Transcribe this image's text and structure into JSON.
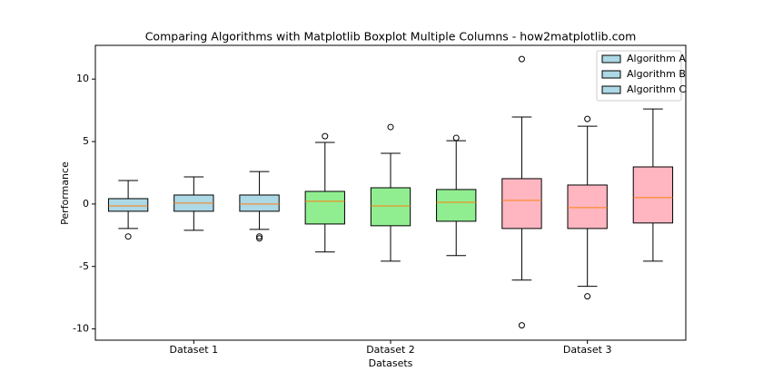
{
  "chart_data": {
    "type": "boxplot",
    "title": "Comparing Algorithms with Matplotlib Boxplot Multiple Columns - how2matplotlib.com",
    "x_label": "Datasets",
    "y_label": "Performance",
    "xlim": [
      0.5,
      9.5
    ],
    "xticks": [
      {
        "value": 2,
        "label": "Dataset 1"
      },
      {
        "value": 5,
        "label": "Dataset 2"
      },
      {
        "value": 8,
        "label": "Dataset 3"
      }
    ],
    "ylim": [
      -10.9,
      12.7
    ],
    "yticks": [
      -10,
      -5,
      0,
      5,
      10
    ],
    "legend_position": "upper right",
    "legend": [
      {
        "name": "Algorithm A",
        "color": "#add8e6"
      },
      {
        "name": "Algorithm B",
        "color": "#add8e6"
      },
      {
        "name": "Algorithm C",
        "color": "#add8e6"
      }
    ],
    "median_color": "#ff7f0e",
    "boxes": [
      {
        "position": 1,
        "color": "#add8e6",
        "whislo": -1.96,
        "q1": -0.58,
        "med": -0.15,
        "q3": 0.43,
        "whishi": 1.88,
        "fliers": [
          -2.6
        ]
      },
      {
        "position": 2,
        "color": "#add8e6",
        "whislo": -2.1,
        "q1": -0.58,
        "med": 0.07,
        "q3": 0.72,
        "whishi": 2.17,
        "fliers": []
      },
      {
        "position": 3,
        "color": "#add8e6",
        "whislo": -2.03,
        "q1": -0.58,
        "med": 0,
        "q3": 0.72,
        "whishi": 2.6,
        "fliers": [
          -2.6,
          -2.75
        ]
      },
      {
        "position": 4,
        "color": "#90ee90",
        "whislo": -3.84,
        "q1": -1.6,
        "med": 0.22,
        "q3": 1.01,
        "whishi": 4.93,
        "fliers": [
          5.43
        ]
      },
      {
        "position": 5,
        "color": "#90ee90",
        "whislo": -4.57,
        "q1": -1.74,
        "med": -0.15,
        "q3": 1.3,
        "whishi": 4.06,
        "fliers": [
          6.16
        ]
      },
      {
        "position": 6,
        "color": "#90ee90",
        "whislo": -4.13,
        "q1": -1.38,
        "med": 0.14,
        "q3": 1.16,
        "whishi": 5.07,
        "fliers": [
          5.29
        ]
      },
      {
        "position": 7,
        "color": "#ffb6c1",
        "whislo": -6.09,
        "q1": -1.96,
        "med": 0.29,
        "q3": 2.03,
        "whishi": 6.96,
        "fliers": [
          11.6,
          -9.71
        ]
      },
      {
        "position": 8,
        "color": "#ffb6c1",
        "whislo": -6.59,
        "q1": -1.96,
        "med": -0.29,
        "q3": 1.52,
        "whishi": 6.23,
        "fliers": [
          6.81,
          -7.39
        ]
      },
      {
        "position": 9,
        "color": "#ffb6c1",
        "whislo": -4.57,
        "q1": -1.52,
        "med": 0.51,
        "q3": 2.97,
        "whishi": 7.61,
        "fliers": []
      }
    ]
  }
}
